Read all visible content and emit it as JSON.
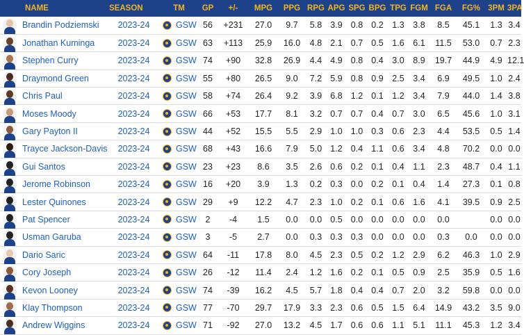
{
  "headers": [
    "NAME",
    "SEASON",
    "TM",
    "GP",
    "+/-",
    "MPG",
    "PPG",
    "RPG",
    "APG",
    "SPG",
    "BPG",
    "TPG",
    "FGM",
    "FGA",
    "FG%",
    "3PM",
    "3PA"
  ],
  "rows": [
    {
      "name": "Brandin Podziemski",
      "season": "2023-24",
      "tm": "GSW",
      "gp": "56",
      "pm": "+231",
      "mpg": "27.0",
      "ppg": "9.7",
      "rpg": "5.8",
      "apg": "3.9",
      "spg": "0.8",
      "bpg": "0.2",
      "tpg": "1.3",
      "fgm": "3.8",
      "fga": "8.5",
      "fgp": "45.1",
      "tpm": "1.3",
      "tpa": "3.4",
      "skin": "#e8c3a5"
    },
    {
      "name": "Jonathan Kuminga",
      "season": "2023-24",
      "tm": "GSW",
      "gp": "63",
      "pm": "+113",
      "mpg": "25.9",
      "ppg": "16.0",
      "rpg": "4.8",
      "apg": "2.1",
      "spg": "0.7",
      "bpg": "0.5",
      "tpg": "1.6",
      "fgm": "6.1",
      "fga": "11.5",
      "fgp": "53.0",
      "tpm": "0.7",
      "tpa": "2.3",
      "skin": "#6b4128"
    },
    {
      "name": "Stephen Curry",
      "season": "2023-24",
      "tm": "GSW",
      "gp": "74",
      "pm": "+90",
      "mpg": "32.8",
      "ppg": "26.9",
      "rpg": "4.4",
      "apg": "4.9",
      "spg": "0.8",
      "bpg": "0.4",
      "tpg": "3.0",
      "fgm": "8.9",
      "fga": "19.7",
      "fgp": "44.9",
      "tpm": "4.9",
      "tpa": "12.1",
      "skin": "#a8754f"
    },
    {
      "name": "Draymond Green",
      "season": "2023-24",
      "tm": "GSW",
      "gp": "55",
      "pm": "+80",
      "mpg": "26.5",
      "ppg": "9.0",
      "rpg": "7.2",
      "apg": "5.9",
      "spg": "0.8",
      "bpg": "0.9",
      "tpg": "2.5",
      "fgm": "3.4",
      "fga": "6.9",
      "fgp": "49.5",
      "tpm": "1.0",
      "tpa": "2.4",
      "skin": "#4a2c1c"
    },
    {
      "name": "Chris Paul",
      "season": "2023-24",
      "tm": "GSW",
      "gp": "58",
      "pm": "+74",
      "mpg": "26.4",
      "ppg": "9.2",
      "rpg": "3.9",
      "apg": "6.8",
      "spg": "1.2",
      "bpg": "0.1",
      "tpg": "1.2",
      "fgm": "3.4",
      "fga": "7.9",
      "fgp": "44.0",
      "tpm": "1.4",
      "tpa": "3.8",
      "skin": "#5e3a24"
    },
    {
      "name": "Moses Moody",
      "season": "2023-24",
      "tm": "GSW",
      "gp": "66",
      "pm": "+53",
      "mpg": "17.7",
      "ppg": "8.1",
      "rpg": "3.2",
      "apg": "0.7",
      "spg": "0.7",
      "bpg": "0.4",
      "tpg": "0.7",
      "fgm": "3.0",
      "fga": "6.5",
      "fgp": "45.6",
      "tpm": "1.0",
      "tpa": "3.1",
      "skin": "#c79a73"
    },
    {
      "name": "Gary Payton II",
      "season": "2023-24",
      "tm": "GSW",
      "gp": "44",
      "pm": "+52",
      "mpg": "15.5",
      "ppg": "5.5",
      "rpg": "2.9",
      "apg": "1.0",
      "spg": "1.0",
      "bpg": "0.3",
      "tpg": "0.6",
      "fgm": "2.3",
      "fga": "4.4",
      "fgp": "53.5",
      "tpm": "0.5",
      "tpa": "1.4",
      "skin": "#8a5a3a"
    },
    {
      "name": "Trayce Jackson-Davis",
      "season": "2023-24",
      "tm": "GSW",
      "gp": "68",
      "pm": "+43",
      "mpg": "16.6",
      "ppg": "7.9",
      "rpg": "5.0",
      "apg": "1.2",
      "spg": "0.4",
      "bpg": "1.1",
      "tpg": "0.6",
      "fgm": "3.4",
      "fga": "4.8",
      "fgp": "70.2",
      "tpm": "0.0",
      "tpa": "0.0",
      "skin": "#2a1a12"
    },
    {
      "name": "Gui Santos",
      "season": "2023-24",
      "tm": "GSW",
      "gp": "23",
      "pm": "+23",
      "mpg": "8.6",
      "ppg": "3.5",
      "rpg": "2.6",
      "apg": "0.6",
      "spg": "0.2",
      "bpg": "0.1",
      "tpg": "0.4",
      "fgm": "1.1",
      "fga": "2.3",
      "fgp": "48.7",
      "tpm": "0.4",
      "tpa": "1.1",
      "skin": "#222222"
    },
    {
      "name": "Jerome Robinson",
      "season": "2023-24",
      "tm": "GSW",
      "gp": "16",
      "pm": "+20",
      "mpg": "3.9",
      "ppg": "1.3",
      "rpg": "0.2",
      "apg": "0.3",
      "spg": "0.0",
      "bpg": "0.2",
      "tpg": "0.1",
      "fgm": "0.4",
      "fga": "1.4",
      "fgp": "27.3",
      "tpm": "0.1",
      "tpa": "0.8",
      "skin": "#222222"
    },
    {
      "name": "Lester Quinones",
      "season": "2023-24",
      "tm": "GSW",
      "gp": "29",
      "pm": "+9",
      "mpg": "12.2",
      "ppg": "4.7",
      "rpg": "2.3",
      "apg": "1.0",
      "spg": "0.2",
      "bpg": "0.1",
      "tpg": "0.6",
      "fgm": "1.6",
      "fga": "4.1",
      "fgp": "39.5",
      "tpm": "0.9",
      "tpa": "2.5",
      "skin": "#222222"
    },
    {
      "name": "Pat Spencer",
      "season": "2023-24",
      "tm": "GSW",
      "gp": "2",
      "pm": "-4",
      "mpg": "1.5",
      "ppg": "0.0",
      "rpg": "0.0",
      "apg": "0.5",
      "spg": "0.0",
      "bpg": "0.0",
      "tpg": "0.0",
      "fgm": "0.0",
      "fga": "0.0",
      "fgp": "",
      "tpm": "0.0",
      "tpa": "0.0",
      "skin": "#222222"
    },
    {
      "name": "Usman Garuba",
      "season": "2023-24",
      "tm": "GSW",
      "gp": "3",
      "pm": "-5",
      "mpg": "2.7",
      "ppg": "0.0",
      "rpg": "0.3",
      "apg": "0.3",
      "spg": "0.3",
      "bpg": "0.0",
      "tpg": "0.0",
      "fgm": "0.0",
      "fga": "0.3",
      "fgp": "0.0",
      "tpm": "0.0",
      "tpa": "0.0",
      "skin": "#222222"
    },
    {
      "name": "Dario Saric",
      "season": "2023-24",
      "tm": "GSW",
      "gp": "64",
      "pm": "-11",
      "mpg": "17.8",
      "ppg": "8.0",
      "rpg": "4.5",
      "apg": "2.3",
      "spg": "0.5",
      "bpg": "0.2",
      "tpg": "1.2",
      "fgm": "2.9",
      "fga": "6.2",
      "fgp": "46.3",
      "tpm": "1.0",
      "tpa": "2.9",
      "skin": "#e9c9ad"
    },
    {
      "name": "Cory Joseph",
      "season": "2023-24",
      "tm": "GSW",
      "gp": "26",
      "pm": "-12",
      "mpg": "11.4",
      "ppg": "2.4",
      "rpg": "1.2",
      "apg": "1.6",
      "spg": "0.2",
      "bpg": "0.1",
      "tpg": "0.5",
      "fgm": "0.9",
      "fga": "2.5",
      "fgp": "35.9",
      "tpm": "0.5",
      "tpa": "1.6",
      "skin": "#8e5b38"
    },
    {
      "name": "Kevon Looney",
      "season": "2023-24",
      "tm": "GSW",
      "gp": "74",
      "pm": "-39",
      "mpg": "16.2",
      "ppg": "4.5",
      "rpg": "5.7",
      "apg": "1.8",
      "spg": "0.4",
      "bpg": "0.4",
      "tpg": "0.7",
      "fgm": "2.0",
      "fga": "3.2",
      "fgp": "59.8",
      "tpm": "0.0",
      "tpa": "0.0",
      "skin": "#5a3320"
    },
    {
      "name": "Klay Thompson",
      "season": "2023-24",
      "tm": "GSW",
      "gp": "77",
      "pm": "-70",
      "mpg": "29.7",
      "ppg": "17.9",
      "rpg": "3.3",
      "apg": "2.3",
      "spg": "0.6",
      "bpg": "0.5",
      "tpg": "1.5",
      "fgm": "6.4",
      "fga": "14.9",
      "fgp": "43.2",
      "tpm": "3.5",
      "tpa": "9.0",
      "skin": "#a06c4a"
    },
    {
      "name": "Andrew Wiggins",
      "season": "2023-24",
      "tm": "GSW",
      "gp": "71",
      "pm": "-92",
      "mpg": "27.0",
      "ppg": "13.2",
      "rpg": "4.5",
      "apg": "1.7",
      "spg": "0.6",
      "bpg": "0.6",
      "tpg": "1.1",
      "fgm": "5.1",
      "fga": "11.1",
      "fgp": "45.3",
      "tpm": "1.2",
      "tpa": "3.4",
      "skin": "#4c2e1d"
    }
  ]
}
